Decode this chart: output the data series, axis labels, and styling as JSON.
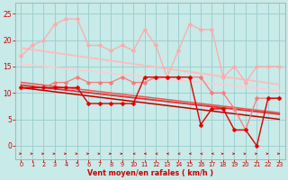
{
  "bg_color": "#c8eae8",
  "grid_color": "#99cccc",
  "xlabel": "Vent moyen/en rafales ( km/h )",
  "xlim": [
    -0.5,
    23.5
  ],
  "ylim": [
    -2.5,
    27
  ],
  "yticks": [
    0,
    5,
    10,
    15,
    20,
    25
  ],
  "xticks": [
    0,
    1,
    2,
    3,
    4,
    5,
    6,
    7,
    8,
    9,
    10,
    11,
    12,
    13,
    14,
    15,
    16,
    17,
    18,
    19,
    20,
    21,
    22,
    23
  ],
  "series": [
    {
      "name": "gust_pink",
      "color": "#ffaaaa",
      "lw": 0.9,
      "marker": "D",
      "ms": 2.5,
      "y": [
        17,
        19,
        20,
        23,
        24,
        24,
        19,
        19,
        18,
        19,
        18,
        22,
        19,
        13,
        18,
        23,
        22,
        22,
        13,
        15,
        12,
        15,
        15,
        15
      ]
    },
    {
      "name": "trend_upper1",
      "color": "#ffbbbb",
      "lw": 1.3,
      "marker": null,
      "y": [
        18.5,
        18.2,
        17.9,
        17.6,
        17.3,
        17.0,
        16.7,
        16.4,
        16.1,
        15.8,
        15.5,
        15.2,
        14.9,
        14.6,
        14.3,
        14.0,
        13.7,
        13.4,
        13.1,
        12.8,
        12.5,
        12.2,
        11.9,
        11.6
      ]
    },
    {
      "name": "trend_upper2",
      "color": "#ffcccc",
      "lw": 1.1,
      "marker": null,
      "y": [
        15.5,
        15.28,
        15.06,
        14.84,
        14.62,
        14.4,
        14.18,
        13.96,
        13.74,
        13.52,
        13.3,
        13.08,
        12.86,
        12.64,
        12.42,
        12.2,
        11.98,
        11.76,
        11.54,
        11.32,
        11.1,
        10.88,
        10.66,
        10.44
      ]
    },
    {
      "name": "mean_medium",
      "color": "#ff7777",
      "lw": 0.9,
      "marker": "D",
      "ms": 2.5,
      "y": [
        11,
        11,
        11,
        12,
        12,
        13,
        12,
        12,
        12,
        13,
        12,
        12,
        13,
        13,
        13,
        13,
        13,
        10,
        10,
        7,
        3,
        9,
        9,
        9
      ]
    },
    {
      "name": "trend_mid1",
      "color": "#ee5555",
      "lw": 1.1,
      "marker": null,
      "y": [
        12.0,
        11.75,
        11.5,
        11.25,
        11.0,
        10.75,
        10.5,
        10.25,
        10.0,
        9.75,
        9.5,
        9.25,
        9.0,
        8.75,
        8.5,
        8.25,
        8.0,
        7.75,
        7.5,
        7.25,
        7.0,
        6.75,
        6.5,
        6.25
      ]
    },
    {
      "name": "trend_mid2",
      "color": "#dd3333",
      "lw": 1.3,
      "marker": null,
      "y": [
        11.5,
        11.26,
        11.02,
        10.78,
        10.54,
        10.3,
        10.06,
        9.82,
        9.58,
        9.34,
        9.1,
        8.86,
        8.62,
        8.38,
        8.14,
        7.9,
        7.66,
        7.42,
        7.18,
        6.94,
        6.7,
        6.46,
        6.22,
        5.98
      ]
    },
    {
      "name": "mean_dark",
      "color": "#dd0000",
      "lw": 1.0,
      "marker": "D",
      "ms": 2.5,
      "y": [
        11,
        11,
        11,
        11,
        11,
        11,
        8,
        8,
        8,
        8,
        8,
        13,
        13,
        13,
        13,
        13,
        4,
        7,
        7,
        3,
        3,
        0,
        9,
        9
      ]
    },
    {
      "name": "trend_low",
      "color": "#bb0000",
      "lw": 1.1,
      "marker": null,
      "y": [
        11.0,
        10.74,
        10.48,
        10.22,
        9.96,
        9.7,
        9.44,
        9.18,
        8.92,
        8.66,
        8.4,
        8.14,
        7.88,
        7.62,
        7.36,
        7.1,
        6.84,
        6.58,
        6.32,
        6.06,
        5.8,
        5.54,
        5.28,
        5.02
      ]
    }
  ],
  "wind_dirs": [
    1,
    1,
    1,
    1,
    1,
    1,
    1,
    1,
    1,
    1,
    -1,
    -1,
    -1,
    -1,
    -1,
    -1,
    -1,
    -1,
    1,
    1,
    1,
    1,
    1,
    1
  ],
  "arrow_color": "#cc0000",
  "xlabel_color": "#cc0000",
  "tick_color": "#cc0000",
  "spine_color": "#aaaaaa"
}
